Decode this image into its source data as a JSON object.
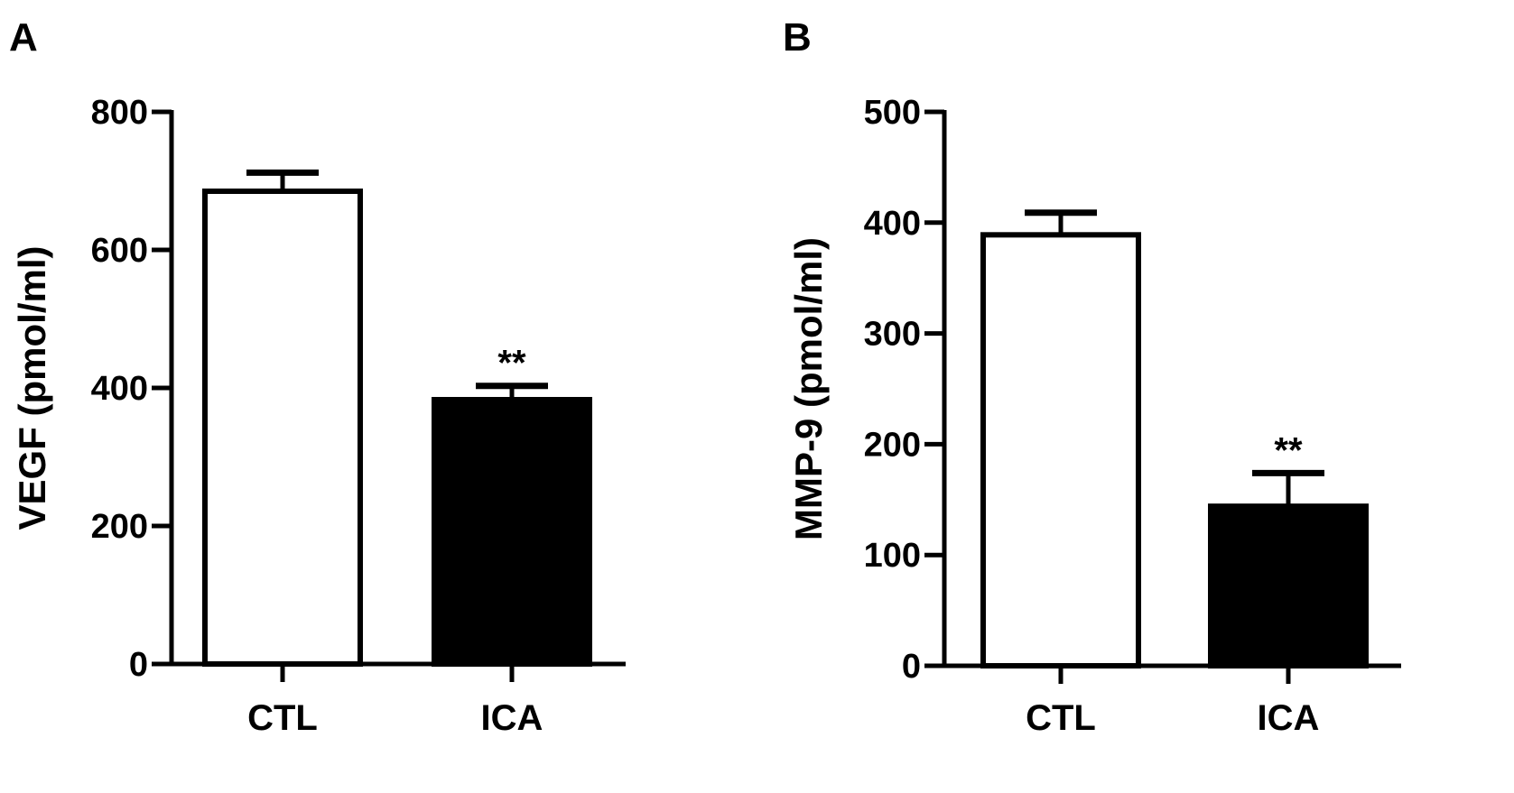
{
  "chart_data": [
    {
      "type": "bar",
      "panel_label": "A",
      "categories": [
        "CTL",
        "ICA"
      ],
      "values": [
        685,
        383
      ],
      "errors": [
        27,
        20
      ],
      "bar_fills": [
        "#ffffff",
        "#000000"
      ],
      "significance": [
        "",
        "**"
      ],
      "xlabel": "",
      "ylabel": "VEGF (pmol/ml)",
      "ylim": [
        0,
        800
      ],
      "yticks": [
        0,
        200,
        400,
        600,
        800
      ],
      "grid": false,
      "legend": "none"
    },
    {
      "type": "bar",
      "panel_label": "B",
      "categories": [
        "CTL",
        "ICA"
      ],
      "values": [
        389,
        144
      ],
      "errors": [
        20,
        30
      ],
      "bar_fills": [
        "#ffffff",
        "#000000"
      ],
      "significance": [
        "",
        "**"
      ],
      "xlabel": "",
      "ylabel": "MMP-9 (pmol/ml)",
      "ylim": [
        0,
        500
      ],
      "yticks": [
        0,
        100,
        200,
        300,
        400,
        500
      ],
      "grid": false,
      "legend": "none"
    }
  ]
}
